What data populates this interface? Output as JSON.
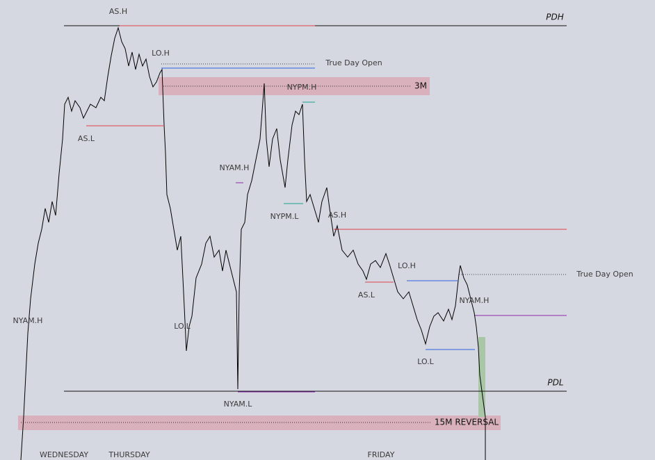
{
  "levels": {
    "pdh": "PDH",
    "pdl": "PDL",
    "true_day_open_1": "True Day Open",
    "true_day_open_2": "True Day Open",
    "zone_3m": "3M",
    "zone_15m": "15M REVERSAL"
  },
  "sessions": [
    "AS.H",
    "LO.H",
    "NYPM.H",
    "AS.L",
    "NYAM.H",
    "NYPM.L",
    "AS.H",
    "LO.H",
    "AS.L",
    "NYAM.H",
    "NYAM.H",
    "LO.L",
    "LO.L",
    "NYAM.L"
  ],
  "days": [
    "WEDNESDAY",
    "THURSDAY",
    "FRIDAY"
  ]
}
